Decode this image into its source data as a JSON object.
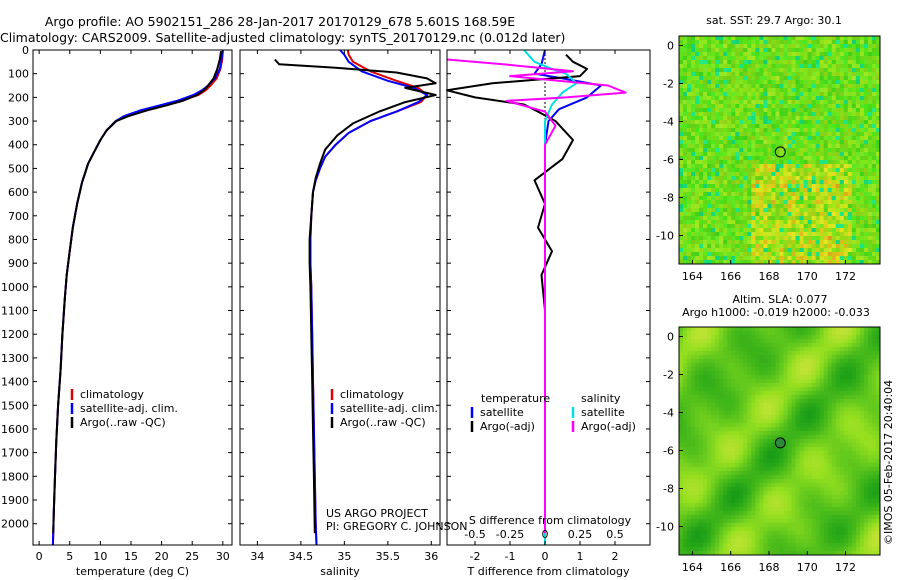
{
  "title": {
    "line1": "Argo profile: AO 5902151_286 28-Jan-2017 20170129_678 5.601S 168.59E",
    "line2": "Climatology: CARS2009. Satellite-adjusted climatology: synTS_20170129.nc (0.012d later)"
  },
  "footer": {
    "project": "US ARGO PROJECT",
    "pi": "PI: GREGORY C. JOHNSON",
    "stamp": "©IMOS 05-Feb-2017 20:40:04"
  },
  "colors": {
    "climatology": "#e00000",
    "satellite": "#0000ff",
    "argo": "#000000",
    "sal_satellite": "#00e0e0",
    "sal_argo": "#ff00ff"
  },
  "chart_data": [
    {
      "type": "line",
      "id": "temp",
      "title": "",
      "xlabel": "temperature (deg C)",
      "ylabel": "",
      "xlim": [
        -1,
        31.5
      ],
      "ylim": [
        2090,
        0
      ],
      "xticks": [
        0,
        5,
        10,
        15,
        20,
        25,
        30
      ],
      "yticks": [
        0,
        100,
        200,
        300,
        400,
        500,
        600,
        700,
        800,
        900,
        1000,
        1100,
        1200,
        1300,
        1400,
        1500,
        1600,
        1700,
        1800,
        1900,
        2000
      ],
      "legend": [
        "climatology",
        "satellite-adj. clim.",
        "Argo(..raw -QC)"
      ],
      "legend_position": "lower-center",
      "series": [
        {
          "name": "climatology",
          "color": "#e00000",
          "x": [
            30,
            29.9,
            29.6,
            29,
            28,
            27.2,
            26,
            23,
            20,
            17,
            14,
            12.5,
            11,
            10,
            9,
            8,
            7,
            6.2,
            5.5,
            5,
            4.5,
            4.2,
            3.8,
            3.5,
            3.1,
            2.8,
            2.6,
            2.4,
            2.3,
            2.25
          ],
          "y": [
            0,
            40,
            80,
            120,
            150,
            170,
            190,
            215,
            235,
            255,
            280,
            300,
            340,
            380,
            430,
            480,
            560,
            650,
            750,
            850,
            950,
            1050,
            1200,
            1350,
            1500,
            1650,
            1800,
            1950,
            2050,
            2090
          ]
        },
        {
          "name": "satellite-adj. clim.",
          "color": "#0000ff",
          "x": [
            30,
            29.8,
            29.5,
            28.7,
            27.6,
            26.6,
            25.2,
            22.5,
            19.5,
            16.5,
            13.8,
            12.5,
            11,
            10,
            9,
            8,
            7,
            6.2,
            5.5,
            5,
            4.5,
            4.2,
            3.8,
            3.5,
            3.1,
            2.8,
            2.6,
            2.4,
            2.3,
            2.25
          ],
          "y": [
            0,
            40,
            80,
            120,
            150,
            170,
            190,
            215,
            235,
            255,
            280,
            300,
            340,
            380,
            430,
            480,
            560,
            650,
            750,
            850,
            950,
            1050,
            1200,
            1350,
            1500,
            1650,
            1800,
            1950,
            2050,
            2090
          ]
        },
        {
          "name": "Argo(..raw -QC)",
          "color": "#000000",
          "x": [
            29.7,
            29.5,
            29.1,
            28.5,
            27.6,
            26.9,
            25.8,
            23.4,
            20.6,
            17.6,
            14.5,
            12.6,
            11,
            10,
            9,
            8,
            7,
            6.2,
            5.5,
            5,
            4.5,
            4.2,
            3.8,
            3.5,
            3.1,
            2.8,
            2.6,
            2.4,
            2.3
          ],
          "y": [
            5,
            40,
            80,
            120,
            150,
            170,
            190,
            215,
            235,
            255,
            280,
            300,
            340,
            380,
            430,
            480,
            560,
            650,
            750,
            850,
            950,
            1050,
            1200,
            1350,
            1500,
            1650,
            1800,
            1950,
            2040
          ]
        }
      ]
    },
    {
      "type": "line",
      "id": "sal",
      "title": "",
      "xlabel": "salinity",
      "ylabel": "",
      "xlim": [
        33.8,
        36.1
      ],
      "ylim": [
        2090,
        0
      ],
      "xticks": [
        34,
        34.5,
        35,
        35.5,
        36
      ],
      "legend": [
        "climatology",
        "satellite-adj. clim.",
        "Argo(..raw -QC)"
      ],
      "legend_position": "lower-right",
      "series": [
        {
          "name": "climatology",
          "color": "#e00000",
          "x": [
            35.04,
            35.05,
            35.1,
            35.3,
            35.6,
            35.85,
            35.95,
            35.88,
            35.6,
            35.3,
            35.05,
            34.9,
            34.78,
            34.72,
            34.67,
            34.64,
            34.62,
            34.61,
            34.61,
            34.62,
            34.63,
            34.64,
            34.65,
            34.66,
            34.67,
            34.68
          ],
          "y": [
            0,
            20,
            50,
            90,
            130,
            160,
            190,
            220,
            260,
            300,
            350,
            400,
            450,
            500,
            550,
            600,
            700,
            800,
            900,
            1000,
            1200,
            1400,
            1600,
            1800,
            2000,
            2090
          ]
        },
        {
          "name": "satellite-adj. clim.",
          "color": "#0000ff",
          "x": [
            34.95,
            35.0,
            35.05,
            35.2,
            35.5,
            35.8,
            35.95,
            35.85,
            35.6,
            35.3,
            35.05,
            34.9,
            34.78,
            34.72,
            34.67,
            34.64,
            34.62,
            34.61,
            34.61,
            34.62,
            34.63,
            34.64,
            34.65,
            34.66,
            34.67,
            34.68
          ],
          "y": [
            0,
            20,
            50,
            90,
            130,
            160,
            190,
            220,
            260,
            300,
            350,
            400,
            450,
            500,
            550,
            600,
            700,
            800,
            900,
            1000,
            1200,
            1400,
            1600,
            1800,
            2000,
            2090
          ]
        },
        {
          "name": "Argo(..raw -QC)",
          "color": "#000000",
          "x": [
            34.2,
            34.25,
            34.9,
            35.6,
            35.95,
            36.05,
            35.7,
            36.05,
            35.7,
            35.4,
            35.1,
            34.92,
            34.78,
            34.72,
            34.67,
            34.64,
            34.62,
            34.6,
            34.6,
            34.61,
            34.62,
            34.63,
            34.64,
            34.65,
            34.66
          ],
          "y": [
            40,
            60,
            75,
            95,
            120,
            140,
            160,
            190,
            220,
            260,
            310,
            360,
            420,
            480,
            540,
            600,
            700,
            800,
            900,
            1000,
            1200,
            1400,
            1600,
            1800,
            2040
          ]
        }
      ]
    },
    {
      "type": "line",
      "id": "diff",
      "title": "",
      "xlabel": "T difference from climatology",
      "x2label": "S difference from climatology",
      "ylabel": "",
      "xlim": [
        -2.8,
        3
      ],
      "ylim": [
        2090,
        0
      ],
      "xticks": [
        -2,
        -1,
        0,
        1,
        2
      ],
      "x2ticks": [
        "-0.5",
        "-0.25",
        "0",
        "0.25",
        "0.5"
      ],
      "x2tick_positions": [
        -2,
        -1,
        0,
        1,
        2
      ],
      "legend_headers": [
        "temperature",
        "salinity"
      ],
      "legend": [
        "satellite",
        "Argo(-adj)",
        "satellite",
        "Argo(-adj)"
      ],
      "legend_position": "lower-center",
      "series": [
        {
          "name": "T satellite",
          "color": "#0000ff",
          "x": [
            0,
            -0.1,
            -0.3,
            0.5,
            1.6,
            1.2,
            0.4,
            0.1,
            0,
            0,
            0,
            0,
            0,
            0,
            0
          ],
          "y": [
            0,
            60,
            100,
            120,
            150,
            200,
            250,
            300,
            400,
            600,
            800,
            1000,
            1400,
            1800,
            2090
          ]
        },
        {
          "name": "T Argo(-adj)",
          "color": "#000000",
          "x": [
            0.6,
            0.8,
            1.2,
            1.0,
            -1.5,
            -2.8,
            -2.0,
            -0.6,
            -0.2,
            0.3,
            0.8,
            0.5,
            -0.3,
            0,
            -0.2,
            0.2,
            -0.1,
            0,
            0,
            0,
            0
          ],
          "y": [
            20,
            50,
            80,
            110,
            140,
            170,
            200,
            230,
            260,
            300,
            380,
            460,
            550,
            650,
            750,
            850,
            950,
            1100,
            1400,
            1800,
            2040
          ]
        },
        {
          "name": "S satellite",
          "color": "#00e0e0",
          "x": [
            -0.6,
            -0.3,
            0.2,
            0.6,
            0.9,
            0.5,
            0.2,
            0,
            0,
            0,
            0,
            0,
            0,
            0,
            0
          ],
          "y": [
            0,
            50,
            80,
            100,
            140,
            180,
            230,
            300,
            400,
            600,
            800,
            1000,
            1400,
            1800,
            2090
          ]
        },
        {
          "name": "S Argo(-adj)",
          "color": "#ff00ff",
          "x": [
            -2.8,
            -1.2,
            0.8,
            -1.0,
            1.8,
            2.3,
            0.6,
            -1.1,
            0,
            0.3,
            0,
            0,
            0,
            0,
            0
          ],
          "y": [
            40,
            60,
            90,
            110,
            150,
            180,
            200,
            215,
            260,
            320,
            400,
            600,
            1000,
            1500,
            2040
          ]
        }
      ]
    },
    {
      "type": "heatmap",
      "id": "sst",
      "title": "sat. SST: 29.7 Argo: 30.1",
      "xlim": [
        163.3,
        173.8
      ],
      "ylim": [
        -11.5,
        0.5
      ],
      "xticks": [
        164,
        166,
        168,
        170,
        172
      ],
      "yticks": [
        0,
        -2,
        -4,
        -6,
        -8,
        -10
      ],
      "marker": {
        "lon": 168.59,
        "lat": -5.601
      }
    },
    {
      "type": "heatmap",
      "id": "sla",
      "title": "Altim. SLA: 0.077",
      "subtitle": "Argo h1000: -0.019 h2000: -0.033",
      "xlim": [
        163.3,
        173.8
      ],
      "ylim": [
        -11.5,
        0.5
      ],
      "xticks": [
        164,
        166,
        168,
        170,
        172
      ],
      "yticks": [
        0,
        -2,
        -4,
        -6,
        -8,
        -10
      ],
      "marker": {
        "lon": 168.59,
        "lat": -5.601
      }
    }
  ]
}
